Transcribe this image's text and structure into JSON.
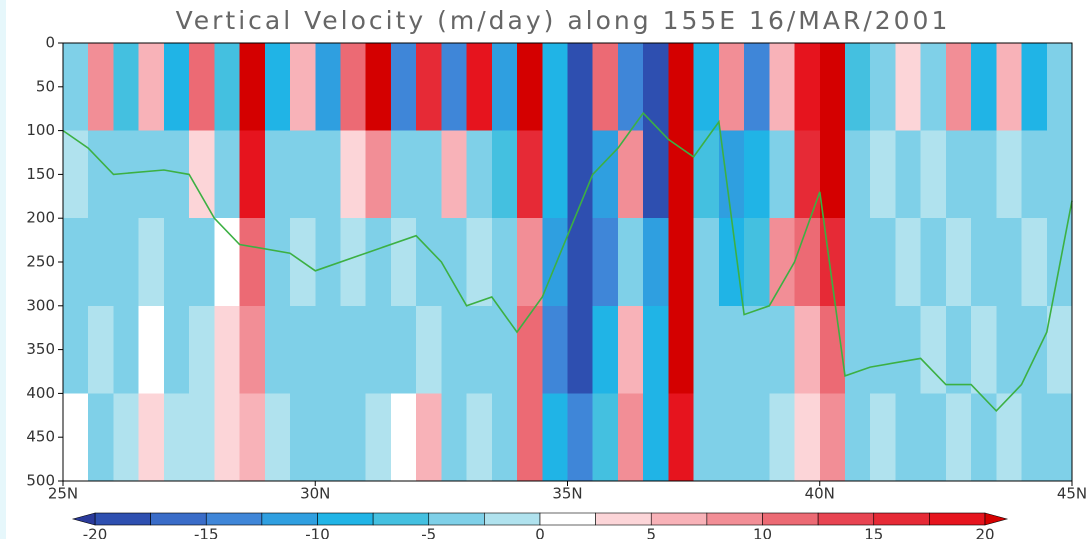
{
  "chart_data": {
    "type": "heatmap",
    "title": "Vertical Velocity (m/day) along 155E 16/MAR/2001",
    "xlim": [
      25,
      45
    ],
    "xticks": [
      {
        "value": 25,
        "label": "25N"
      },
      {
        "value": 30,
        "label": "30N"
      },
      {
        "value": 35,
        "label": "35N"
      },
      {
        "value": 40,
        "label": "40N"
      },
      {
        "value": 45,
        "label": "45N"
      }
    ],
    "ylim": [
      500,
      0
    ],
    "yticks": [
      0,
      50,
      100,
      150,
      200,
      250,
      300,
      350,
      400,
      450,
      500
    ],
    "x": [
      25.25,
      25.75,
      26.25,
      26.75,
      27.25,
      27.75,
      28.25,
      28.75,
      29.25,
      29.75,
      30.25,
      30.75,
      31.25,
      31.75,
      32.25,
      32.75,
      33.25,
      33.75,
      34.25,
      34.75,
      35.25,
      35.75,
      36.25,
      36.75,
      37.25,
      37.75,
      38.25,
      38.75,
      39.25,
      39.75,
      40.25,
      40.75,
      41.25,
      41.75,
      42.25,
      42.75,
      43.25,
      43.75,
      44.25,
      44.75
    ],
    "y": [
      50,
      150,
      250,
      350,
      450
    ],
    "z": [
      [
        -3,
        -2,
        -4,
        -3,
        2
      ],
      [
        8,
        -5,
        -3,
        -2,
        -3
      ],
      [
        -6,
        -3,
        -3,
        -4,
        -2
      ],
      [
        5,
        -4,
        -2,
        2,
        3
      ],
      [
        -8,
        -3,
        -4,
        -3,
        -2
      ],
      [
        10,
        3,
        -3,
        -2,
        -2
      ],
      [
        -6,
        -4,
        2,
        3,
        4
      ],
      [
        20,
        18,
        12,
        8,
        6
      ],
      [
        -10,
        -5,
        -4,
        -3,
        -2
      ],
      [
        6,
        -3,
        -2,
        -4,
        -3
      ],
      [
        -12,
        -4,
        -3,
        -5,
        -4
      ],
      [
        12,
        4,
        -2,
        -3,
        -3
      ],
      [
        20,
        8,
        -3,
        -4,
        -2
      ],
      [
        -14,
        -3,
        -2,
        -3,
        2
      ],
      [
        15,
        -4,
        -3,
        -2,
        5
      ],
      [
        -15,
        6,
        -3,
        -4,
        -3
      ],
      [
        18,
        -5,
        -2,
        -3,
        -2
      ],
      [
        -12,
        -6,
        -5,
        -4,
        -3
      ],
      [
        20,
        15,
        8,
        10,
        12
      ],
      [
        -8,
        -10,
        -12,
        -15,
        -10
      ],
      [
        -20,
        -20,
        -18,
        -20,
        -15
      ],
      [
        10,
        -12,
        -15,
        -10,
        -6
      ],
      [
        -15,
        8,
        -5,
        6,
        8
      ],
      [
        -20,
        -18,
        -12,
        -10,
        -8
      ],
      [
        20,
        20,
        20,
        20,
        18
      ],
      [
        -10,
        -6,
        -5,
        -3,
        -4
      ],
      [
        8,
        -12,
        -10,
        -4,
        -3
      ],
      [
        -14,
        -8,
        -6,
        -3,
        -4
      ],
      [
        6,
        -4,
        8,
        -3,
        -2
      ],
      [
        18,
        15,
        12,
        6,
        4
      ],
      [
        20,
        20,
        15,
        10,
        8
      ],
      [
        -6,
        -4,
        -3,
        -4,
        -3
      ],
      [
        -3,
        -2,
        -3,
        -4,
        -2
      ],
      [
        4,
        -3,
        -2,
        -3,
        -3
      ],
      [
        -4,
        -2,
        -3,
        -2,
        -4
      ],
      [
        8,
        -3,
        -2,
        -3,
        -2
      ],
      [
        -10,
        -4,
        -3,
        -2,
        -3
      ],
      [
        6,
        -2,
        -3,
        -4,
        -2
      ],
      [
        -8,
        -3,
        -2,
        -3,
        -3
      ],
      [
        -5,
        -3,
        -4,
        -2,
        -3
      ]
    ],
    "levels": [
      -20,
      -17.5,
      -15,
      -12.5,
      -10,
      -7.5,
      -5,
      -2.5,
      0,
      2.5,
      5,
      7.5,
      10,
      12.5,
      15,
      17.5,
      20
    ],
    "colors": [
      "#2a3a9a",
      "#2e4fb0",
      "#3a6cc8",
      "#3f86d8",
      "#2f9fe0",
      "#20b4e6",
      "#44c0e0",
      "#7fd0e8",
      "#b0e2ee",
      "#ffffff",
      "#fcd5d8",
      "#f8b2b8",
      "#f28e96",
      "#ec6a74",
      "#e84452",
      "#e62a36",
      "#e6141e",
      "#d40000"
    ],
    "colorbar_ticks": [
      -20,
      -15,
      -10,
      -5,
      0,
      5,
      10,
      15,
      20
    ],
    "lines": [
      {
        "color": "#3cb043",
        "x": [
          25,
          25.5,
          26,
          27,
          27.5,
          28,
          28.5,
          29.5,
          30,
          31,
          32,
          32.5,
          33,
          33.5,
          34,
          34.5,
          35,
          35.5,
          36,
          36.5,
          37,
          37.5,
          38,
          38.5,
          39,
          39.5,
          40,
          40.5,
          41,
          42,
          42.5,
          43,
          43.5,
          44,
          44.5,
          45
        ],
        "y": [
          100,
          120,
          150,
          145,
          150,
          200,
          230,
          240,
          260,
          240,
          220,
          250,
          300,
          290,
          330,
          290,
          220,
          150,
          120,
          80,
          110,
          130,
          90,
          310,
          300,
          250,
          170,
          380,
          370,
          360,
          390,
          390,
          420,
          390,
          330,
          180
        ]
      }
    ]
  }
}
